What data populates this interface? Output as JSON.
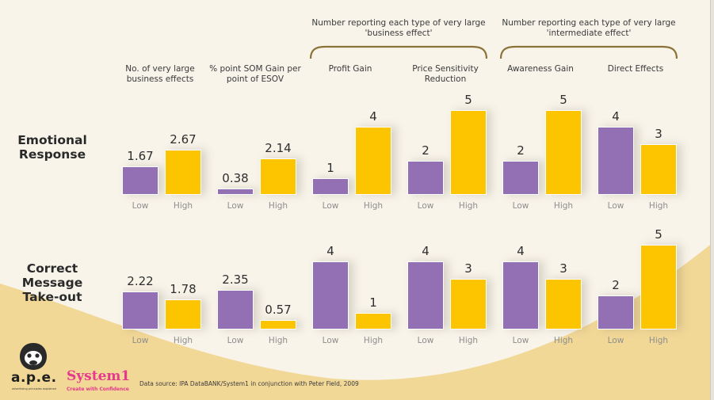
{
  "colors": {
    "low": "#9370b3",
    "high": "#fcc500",
    "background": "#f8f4ea",
    "wave": "#f2d897",
    "bracket": "#8a7337"
  },
  "group_titles": [
    "Number reporting each type of very large 'business effect'",
    "Number reporting each type of very large 'intermediate effect'"
  ],
  "row_labels": [
    "Emotional Response",
    "Correct Message Take-out"
  ],
  "footer": {
    "ape_name": "a.p.e.",
    "ape_tagline": "advertising principles explained",
    "system1_name": "System1",
    "system1_tagline": "Create with Confidence",
    "source": "Data source: IPA DataBANK/System1 in conjunction with Peter Field, 2009"
  },
  "chart_data": {
    "type": "bar",
    "title": "",
    "xlabel": "",
    "ylabel": "",
    "legend": "none",
    "grid": false,
    "categories": [
      "Low",
      "High"
    ],
    "metrics": [
      "No. of very large business effects",
      "% point SOM Gain per point of ESOV",
      "Profit Gain",
      "Price Sensitivity Reduction",
      "Awareness Gain",
      "Direct Effects"
    ],
    "panels": [
      {
        "row": "Emotional Response",
        "series": [
          {
            "name": "Low",
            "values": [
              1.67,
              0.38,
              1,
              2,
              2,
              4
            ]
          },
          {
            "name": "High",
            "values": [
              2.67,
              2.14,
              4,
              5,
              5,
              3
            ]
          }
        ],
        "labels": {
          "low": [
            "1.67",
            "0.38",
            "1",
            "2",
            "2",
            "4"
          ],
          "high": [
            "2.67",
            "2.14",
            "4",
            "5",
            "5",
            "3"
          ]
        }
      },
      {
        "row": "Correct Message Take-out",
        "series": [
          {
            "name": "Low",
            "values": [
              2.22,
              2.35,
              4,
              4,
              4,
              2
            ]
          },
          {
            "name": "High",
            "values": [
              1.78,
              0.57,
              1,
              3,
              3,
              5
            ]
          }
        ],
        "labels": {
          "low": [
            "2.22",
            "2.35",
            "4",
            "4",
            "4",
            "2"
          ],
          "high": [
            "1.78",
            "0.57",
            "1",
            "3",
            "3",
            "5"
          ]
        }
      }
    ],
    "ylim": [
      0,
      5
    ]
  }
}
